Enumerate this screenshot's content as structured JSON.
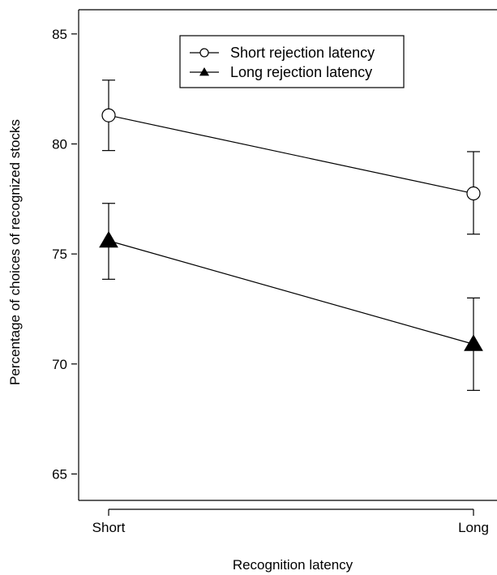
{
  "chart_data": {
    "type": "line",
    "title": "",
    "xlabel": "Recognition latency",
    "ylabel": "Percentage of choices of recognized stocks",
    "categories": [
      "Short",
      "Long"
    ],
    "ylim": [
      63.8,
      86.1
    ],
    "yticks": [
      65,
      70,
      75,
      80,
      85
    ],
    "grid": false,
    "legend_position": "top-center",
    "series": [
      {
        "name": "Short rejection latency",
        "marker": "open-circle",
        "color": "#000000",
        "values": [
          81.3,
          77.75
        ],
        "error_low": [
          79.7,
          75.9
        ],
        "error_high": [
          82.9,
          79.65
        ]
      },
      {
        "name": "Long rejection latency",
        "marker": "filled-triangle",
        "color": "#000000",
        "values": [
          75.6,
          70.9
        ],
        "error_low": [
          73.85,
          68.8
        ],
        "error_high": [
          77.3,
          73.0
        ]
      }
    ]
  }
}
